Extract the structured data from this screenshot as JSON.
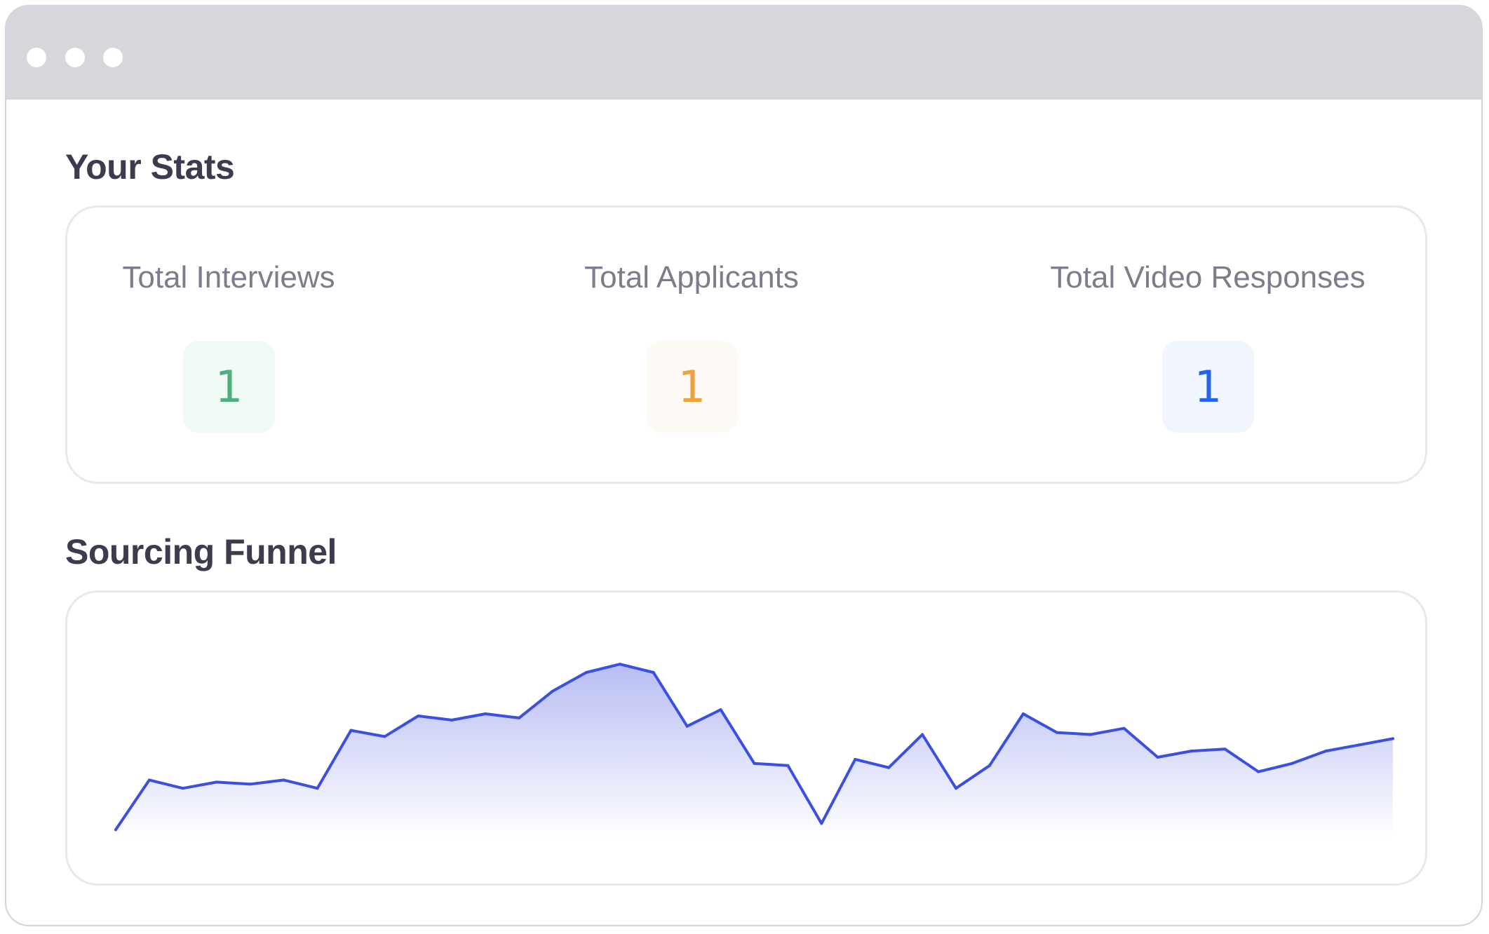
{
  "window": {
    "controls": [
      "close-dot",
      "minimize-dot",
      "maximize-dot"
    ]
  },
  "stats_section": {
    "title": "Your Stats",
    "items": [
      {
        "label": "Total Interviews",
        "value": "1",
        "color": "#4caf7d",
        "background": "#eefaf3"
      },
      {
        "label": "Total Applicants",
        "value": "1",
        "color": "#eda23a",
        "background": "#fdfaf5"
      },
      {
        "label": "Total Video Responses",
        "value": "1",
        "color": "#2563eb",
        "background": "#f1f5fd"
      }
    ]
  },
  "funnel_section": {
    "title": "Sourcing Funnel"
  },
  "chart_data": {
    "type": "area",
    "title": "",
    "xlabel": "",
    "ylabel": "",
    "grid": false,
    "legend": "none",
    "line_color": "#3b4fe0",
    "fill_color": "#b3b9f3",
    "ylim": [
      0,
      100
    ],
    "x": [
      0,
      1,
      2,
      3,
      4,
      5,
      6,
      7,
      8,
      9,
      10,
      11,
      12,
      13,
      14,
      15,
      16,
      17,
      18,
      19,
      20,
      21,
      22,
      23,
      24,
      25,
      26,
      27,
      28,
      29,
      30,
      31,
      32,
      33,
      34,
      35,
      36,
      37,
      38
    ],
    "series": [
      {
        "values": [
          4,
          28,
          24,
          27,
          26,
          28,
          24,
          52,
          49,
          59,
          57,
          60,
          58,
          71,
          80,
          84,
          80,
          54,
          62,
          36,
          35,
          7,
          38,
          34,
          50,
          24,
          35,
          60,
          51,
          50,
          53,
          39,
          42,
          43,
          32,
          36,
          42,
          45,
          48
        ]
      }
    ]
  }
}
